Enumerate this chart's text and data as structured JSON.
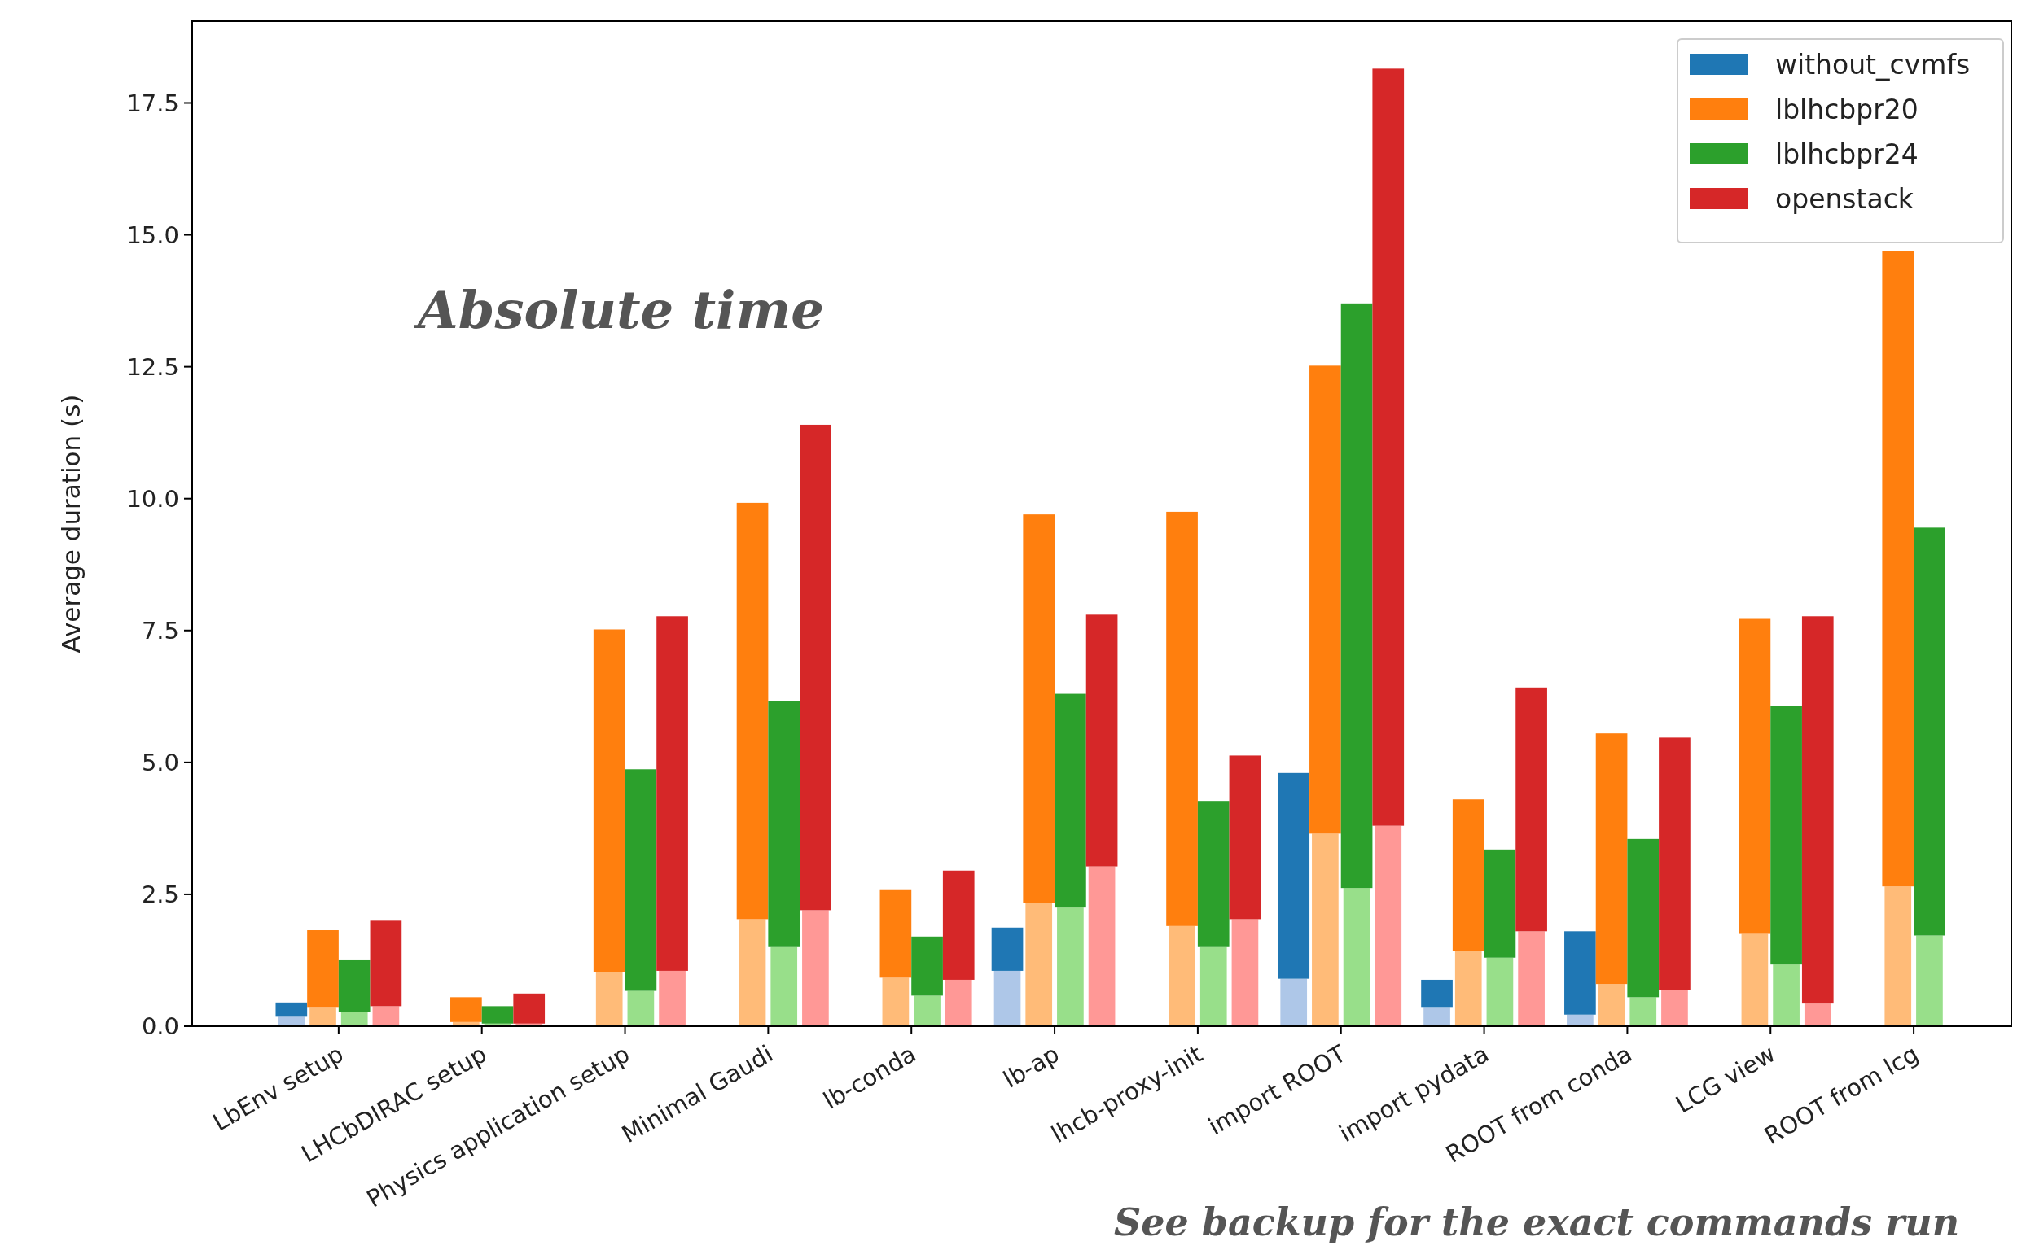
{
  "chart_data": {
    "type": "bar",
    "ylabel": "Average duration (s)",
    "annotations": [
      "Absolute time",
      "See backup for the exact commands run"
    ],
    "categories": [
      "LbEnv setup",
      "LHCbDIRAC setup",
      "Physics application setup",
      "Minimal Gaudi",
      "lb-conda",
      "lb-ap",
      "lhcb-proxy-init",
      "import ROOT",
      "import pydata",
      "ROOT from conda",
      "LCG view",
      "ROOT from lcg"
    ],
    "ylim": [
      0,
      19.05
    ],
    "yticks": [
      {
        "value": 0,
        "label": "0.0"
      },
      {
        "value": 2.5,
        "label": "2.5"
      },
      {
        "value": 5,
        "label": "5.0"
      },
      {
        "value": 7.5,
        "label": "7.5"
      },
      {
        "value": 10,
        "label": "10.0"
      },
      {
        "value": 12.5,
        "label": "12.5"
      },
      {
        "value": 15,
        "label": "15.0"
      },
      {
        "value": 17.5,
        "label": "17.5"
      }
    ],
    "grid": false,
    "legend": "top right",
    "series": [
      {
        "color": "#aec7e8",
        "values": [
          0.18,
          null,
          null,
          null,
          null,
          1.05,
          null,
          0.9,
          0.35,
          0.22,
          null,
          null
        ]
      },
      {
        "name": "without_cvmfs",
        "color": "#1f77b4",
        "base": [
          0.18,
          null,
          null,
          null,
          null,
          1.05,
          null,
          0.9,
          0.35,
          0.22,
          null,
          null
        ],
        "values": [
          0.27,
          null,
          null,
          null,
          null,
          0.82,
          null,
          3.9,
          0.53,
          1.58,
          null,
          null
        ]
      },
      {
        "color": "#ffbb78",
        "values": [
          0.35,
          0.08,
          1.02,
          2.03,
          0.92,
          2.33,
          1.9,
          3.65,
          1.43,
          0.8,
          1.75,
          2.65
        ]
      },
      {
        "name": "lblhcbpr20",
        "color": "#ff7f0e",
        "base": [
          0.35,
          0.08,
          1.02,
          2.03,
          0.92,
          2.33,
          1.9,
          3.65,
          1.43,
          0.8,
          1.75,
          2.65
        ],
        "values": [
          1.47,
          0.47,
          6.5,
          7.89,
          1.66,
          7.37,
          7.85,
          8.87,
          2.87,
          4.75,
          5.97,
          12.05
        ]
      },
      {
        "color": "#98df8a",
        "values": [
          0.27,
          0.05,
          0.67,
          1.5,
          0.58,
          2.25,
          1.5,
          2.62,
          1.3,
          0.55,
          1.17,
          1.72
        ]
      },
      {
        "name": "lblhcbpr24",
        "color": "#2ca02c",
        "base": [
          0.27,
          0.05,
          0.67,
          1.5,
          0.58,
          2.25,
          1.5,
          2.62,
          1.3,
          0.55,
          1.17,
          1.72
        ],
        "values": [
          0.98,
          0.33,
          4.2,
          4.67,
          1.12,
          4.05,
          2.77,
          11.08,
          2.05,
          3.0,
          4.9,
          7.73
        ]
      },
      {
        "color": "#ff9896",
        "values": [
          0.38,
          0.05,
          1.05,
          2.2,
          0.88,
          3.03,
          2.03,
          3.8,
          1.8,
          0.68,
          0.43,
          null
        ]
      },
      {
        "name": "openstack",
        "color": "#d62728",
        "base": [
          0.38,
          0.05,
          1.05,
          2.2,
          0.88,
          3.03,
          2.03,
          3.8,
          1.8,
          0.68,
          0.43,
          null
        ],
        "values": [
          1.62,
          0.57,
          6.72,
          9.2,
          2.07,
          4.77,
          3.1,
          14.35,
          4.62,
          4.79,
          7.34,
          null
        ]
      }
    ]
  }
}
